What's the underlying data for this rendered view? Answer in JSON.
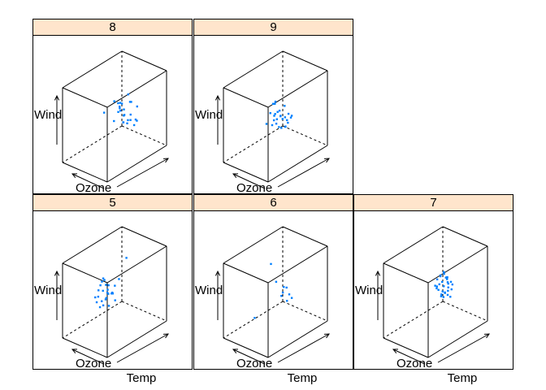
{
  "chart_data": {
    "type": "scatter",
    "kind": "3d-cloud-conditioned",
    "strip_color": "#ffe5cc",
    "point_color": "#0080ff",
    "axis_labels": {
      "x": "Ozone",
      "y": "Temp",
      "z": "Wind"
    },
    "panels": [
      {
        "label": "8",
        "points": [
          [
            0.2,
            0.55,
            0.45
          ],
          [
            0.45,
            0.6,
            0.5
          ],
          [
            0.55,
            0.55,
            0.6
          ],
          [
            0.6,
            0.52,
            0.7
          ],
          [
            0.65,
            0.6,
            0.4
          ],
          [
            0.5,
            0.65,
            0.35
          ],
          [
            0.4,
            0.7,
            0.55
          ],
          [
            0.7,
            0.62,
            0.52
          ],
          [
            0.75,
            0.58,
            0.48
          ],
          [
            0.58,
            0.7,
            0.62
          ],
          [
            0.52,
            0.48,
            0.72
          ],
          [
            0.66,
            0.66,
            0.66
          ],
          [
            0.62,
            0.74,
            0.3
          ],
          [
            0.46,
            0.52,
            0.42
          ],
          [
            0.72,
            0.5,
            0.58
          ],
          [
            0.8,
            0.65,
            0.45
          ],
          [
            0.55,
            0.62,
            0.55
          ],
          [
            0.6,
            0.58,
            0.5
          ],
          [
            0.5,
            0.56,
            0.65
          ],
          [
            0.68,
            0.72,
            0.4
          ],
          [
            0.42,
            0.66,
            0.48
          ],
          [
            0.64,
            0.54,
            0.44
          ],
          [
            0.74,
            0.7,
            0.6
          ],
          [
            0.56,
            0.68,
            0.38
          ],
          [
            0.48,
            0.6,
            0.58
          ],
          [
            0.62,
            0.64,
            0.76
          ]
        ]
      },
      {
        "label": "9",
        "points": [
          [
            0.3,
            0.5,
            0.35
          ],
          [
            0.4,
            0.55,
            0.4
          ],
          [
            0.5,
            0.6,
            0.3
          ],
          [
            0.35,
            0.65,
            0.45
          ],
          [
            0.55,
            0.55,
            0.5
          ],
          [
            0.6,
            0.62,
            0.42
          ],
          [
            0.45,
            0.7,
            0.38
          ],
          [
            0.38,
            0.58,
            0.6
          ],
          [
            0.52,
            0.48,
            0.55
          ],
          [
            0.58,
            0.66,
            0.48
          ],
          [
            0.42,
            0.62,
            0.28
          ],
          [
            0.48,
            0.54,
            0.44
          ],
          [
            0.62,
            0.58,
            0.36
          ],
          [
            0.36,
            0.52,
            0.5
          ],
          [
            0.54,
            0.68,
            0.34
          ],
          [
            0.46,
            0.6,
            0.52
          ],
          [
            0.66,
            0.64,
            0.46
          ],
          [
            0.4,
            0.66,
            0.4
          ],
          [
            0.5,
            0.5,
            0.7
          ],
          [
            0.56,
            0.62,
            0.32
          ],
          [
            0.44,
            0.56,
            0.36
          ],
          [
            0.6,
            0.7,
            0.44
          ],
          [
            0.34,
            0.6,
            0.42
          ],
          [
            0.52,
            0.64,
            0.58
          ],
          [
            0.48,
            0.46,
            0.4
          ],
          [
            0.58,
            0.56,
            0.46
          ],
          [
            0.42,
            0.52,
            0.64
          ]
        ]
      },
      {
        "label": "5",
        "points": [
          [
            0.2,
            0.4,
            0.4
          ],
          [
            0.25,
            0.45,
            0.55
          ],
          [
            0.3,
            0.5,
            0.35
          ],
          [
            0.35,
            0.4,
            0.65
          ],
          [
            0.28,
            0.55,
            0.45
          ],
          [
            0.4,
            0.48,
            0.3
          ],
          [
            0.22,
            0.52,
            0.6
          ],
          [
            0.32,
            0.44,
            0.5
          ],
          [
            0.38,
            0.56,
            0.42
          ],
          [
            0.26,
            0.38,
            0.36
          ],
          [
            0.45,
            0.5,
            0.48
          ],
          [
            0.3,
            0.6,
            0.38
          ],
          [
            0.36,
            0.46,
            0.58
          ],
          [
            0.24,
            0.48,
            0.32
          ],
          [
            0.42,
            0.42,
            0.44
          ],
          [
            0.34,
            0.52,
            0.54
          ],
          [
            0.28,
            0.42,
            0.28
          ],
          [
            0.4,
            0.58,
            0.52
          ],
          [
            0.32,
            0.36,
            0.46
          ],
          [
            0.5,
            0.7,
            0.86
          ],
          [
            0.44,
            0.62,
            0.6
          ],
          [
            0.26,
            0.56,
            0.4
          ],
          [
            0.38,
            0.4,
            0.34
          ],
          [
            0.3,
            0.48,
            0.62
          ],
          [
            0.46,
            0.54,
            0.36
          ],
          [
            0.22,
            0.44,
            0.48
          ],
          [
            0.36,
            0.5,
            0.44
          ]
        ]
      },
      {
        "label": "6",
        "points": [
          [
            0.3,
            0.3,
            0.2
          ],
          [
            0.5,
            0.6,
            0.4
          ],
          [
            0.55,
            0.65,
            0.5
          ],
          [
            0.6,
            0.7,
            0.35
          ],
          [
            0.45,
            0.55,
            0.6
          ],
          [
            0.4,
            0.5,
            0.85
          ],
          [
            0.65,
            0.62,
            0.45
          ],
          [
            0.52,
            0.68,
            0.3
          ],
          [
            0.58,
            0.58,
            0.55
          ],
          [
            0.48,
            0.64,
            0.42
          ]
        ]
      },
      {
        "label": "7",
        "points": [
          [
            0.4,
            0.6,
            0.5
          ],
          [
            0.45,
            0.65,
            0.55
          ],
          [
            0.5,
            0.7,
            0.6
          ],
          [
            0.55,
            0.62,
            0.45
          ],
          [
            0.42,
            0.68,
            0.4
          ],
          [
            0.48,
            0.72,
            0.52
          ],
          [
            0.52,
            0.66,
            0.62
          ],
          [
            0.46,
            0.58,
            0.48
          ],
          [
            0.58,
            0.7,
            0.56
          ],
          [
            0.44,
            0.64,
            0.36
          ],
          [
            0.5,
            0.6,
            0.42
          ],
          [
            0.56,
            0.74,
            0.5
          ],
          [
            0.38,
            0.62,
            0.58
          ],
          [
            0.54,
            0.68,
            0.44
          ],
          [
            0.48,
            0.66,
            0.66
          ],
          [
            0.6,
            0.64,
            0.52
          ],
          [
            0.42,
            0.7,
            0.46
          ],
          [
            0.52,
            0.62,
            0.38
          ],
          [
            0.46,
            0.72,
            0.58
          ],
          [
            0.36,
            0.6,
            0.5
          ],
          [
            0.56,
            0.66,
            0.4
          ],
          [
            0.44,
            0.74,
            0.54
          ],
          [
            0.5,
            0.64,
            0.7
          ],
          [
            0.58,
            0.6,
            0.46
          ],
          [
            0.4,
            0.66,
            0.62
          ],
          [
            0.54,
            0.72,
            0.34
          ],
          [
            0.48,
            0.58,
            0.56
          ],
          [
            0.62,
            0.68,
            0.48
          ],
          [
            0.34,
            0.64,
            0.44
          ],
          [
            0.52,
            0.7,
            0.52
          ],
          [
            0.45,
            0.62,
            0.64
          ]
        ]
      }
    ]
  }
}
